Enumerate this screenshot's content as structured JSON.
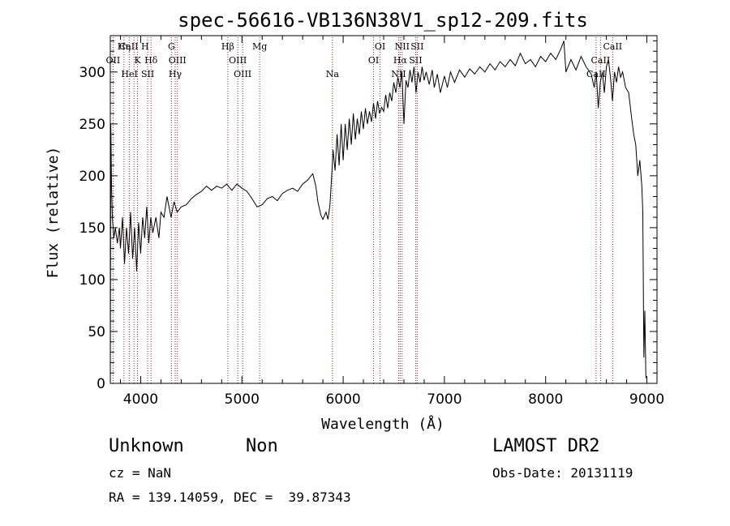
{
  "chart_data": {
    "type": "line",
    "title": "spec-56616-VB136N38V1_sp12-209.fits",
    "xlabel": "Wavelength (Å)",
    "ylabel": "Flux (relative)",
    "xlim": [
      3700,
      9100
    ],
    "ylim": [
      0,
      335
    ],
    "xticks": [
      4000,
      5000,
      6000,
      7000,
      8000,
      9000
    ],
    "yticks": [
      0,
      50,
      100,
      150,
      200,
      250,
      300
    ],
    "line_color": "#000000",
    "marker_color": "#a0202a",
    "series": [
      {
        "values_xy": [
          [
            3700,
            5
          ],
          [
            3705,
            250
          ],
          [
            3712,
            190
          ],
          [
            3720,
            160
          ],
          [
            3735,
            140
          ],
          [
            3750,
            150
          ],
          [
            3770,
            135
          ],
          [
            3790,
            150
          ],
          [
            3800,
            130
          ],
          [
            3820,
            160
          ],
          [
            3840,
            115
          ],
          [
            3860,
            150
          ],
          [
            3880,
            125
          ],
          [
            3900,
            165
          ],
          [
            3920,
            120
          ],
          [
            3940,
            150
          ],
          [
            3960,
            108
          ],
          [
            3980,
            155
          ],
          [
            4000,
            125
          ],
          [
            4020,
            160
          ],
          [
            4040,
            140
          ],
          [
            4060,
            170
          ],
          [
            4080,
            135
          ],
          [
            4100,
            160
          ],
          [
            4120,
            145
          ],
          [
            4150,
            160
          ],
          [
            4180,
            140
          ],
          [
            4200,
            165
          ],
          [
            4230,
            160
          ],
          [
            4260,
            180
          ],
          [
            4300,
            160
          ],
          [
            4330,
            175
          ],
          [
            4360,
            165
          ],
          [
            4400,
            170
          ],
          [
            4450,
            172
          ],
          [
            4500,
            178
          ],
          [
            4550,
            182
          ],
          [
            4600,
            185
          ],
          [
            4650,
            190
          ],
          [
            4700,
            186
          ],
          [
            4750,
            190
          ],
          [
            4800,
            188
          ],
          [
            4850,
            192
          ],
          [
            4900,
            186
          ],
          [
            4950,
            192
          ],
          [
            5000,
            188
          ],
          [
            5050,
            185
          ],
          [
            5100,
            178
          ],
          [
            5150,
            170
          ],
          [
            5200,
            172
          ],
          [
            5250,
            178
          ],
          [
            5300,
            180
          ],
          [
            5350,
            176
          ],
          [
            5400,
            183
          ],
          [
            5450,
            186
          ],
          [
            5500,
            188
          ],
          [
            5550,
            185
          ],
          [
            5600,
            192
          ],
          [
            5650,
            196
          ],
          [
            5700,
            202
          ],
          [
            5730,
            190
          ],
          [
            5750,
            175
          ],
          [
            5780,
            162
          ],
          [
            5800,
            158
          ],
          [
            5830,
            165
          ],
          [
            5850,
            158
          ],
          [
            5870,
            172
          ],
          [
            5890,
            205
          ],
          [
            5900,
            225
          ],
          [
            5920,
            205
          ],
          [
            5940,
            240
          ],
          [
            5960,
            210
          ],
          [
            5980,
            250
          ],
          [
            6000,
            215
          ],
          [
            6020,
            250
          ],
          [
            6040,
            225
          ],
          [
            6060,
            255
          ],
          [
            6080,
            230
          ],
          [
            6100,
            260
          ],
          [
            6120,
            235
          ],
          [
            6140,
            255
          ],
          [
            6160,
            240
          ],
          [
            6180,
            262
          ],
          [
            6200,
            245
          ],
          [
            6220,
            265
          ],
          [
            6240,
            250
          ],
          [
            6260,
            262
          ],
          [
            6280,
            252
          ],
          [
            6300,
            270
          ],
          [
            6320,
            255
          ],
          [
            6340,
            272
          ],
          [
            6360,
            260
          ],
          [
            6380,
            266
          ],
          [
            6400,
            262
          ],
          [
            6420,
            278
          ],
          [
            6440,
            265
          ],
          [
            6460,
            280
          ],
          [
            6480,
            272
          ],
          [
            6500,
            290
          ],
          [
            6520,
            280
          ],
          [
            6540,
            295
          ],
          [
            6560,
            285
          ],
          [
            6580,
            300
          ],
          [
            6600,
            250
          ],
          [
            6620,
            292
          ],
          [
            6640,
            285
          ],
          [
            6660,
            302
          ],
          [
            6680,
            290
          ],
          [
            6700,
            305
          ],
          [
            6720,
            280
          ],
          [
            6740,
            300
          ],
          [
            6760,
            290
          ],
          [
            6780,
            305
          ],
          [
            6800,
            292
          ],
          [
            6820,
            300
          ],
          [
            6850,
            288
          ],
          [
            6880,
            302
          ],
          [
            6900,
            285
          ],
          [
            6930,
            298
          ],
          [
            6960,
            280
          ],
          [
            7000,
            296
          ],
          [
            7030,
            285
          ],
          [
            7060,
            300
          ],
          [
            7100,
            290
          ],
          [
            7150,
            302
          ],
          [
            7200,
            295
          ],
          [
            7250,
            303
          ],
          [
            7300,
            298
          ],
          [
            7350,
            305
          ],
          [
            7400,
            300
          ],
          [
            7450,
            308
          ],
          [
            7500,
            302
          ],
          [
            7550,
            310
          ],
          [
            7600,
            305
          ],
          [
            7650,
            312
          ],
          [
            7700,
            306
          ],
          [
            7750,
            318
          ],
          [
            7800,
            308
          ],
          [
            7850,
            312
          ],
          [
            7900,
            305
          ],
          [
            7950,
            315
          ],
          [
            8000,
            310
          ],
          [
            8050,
            318
          ],
          [
            8100,
            312
          ],
          [
            8150,
            322
          ],
          [
            8180,
            330
          ],
          [
            8200,
            300
          ],
          [
            8250,
            312
          ],
          [
            8300,
            302
          ],
          [
            8350,
            315
          ],
          [
            8400,
            305
          ],
          [
            8450,
            298
          ],
          [
            8480,
            285
          ],
          [
            8500,
            300
          ],
          [
            8520,
            265
          ],
          [
            8540,
            290
          ],
          [
            8560,
            300
          ],
          [
            8580,
            280
          ],
          [
            8600,
            305
          ],
          [
            8620,
            312
          ],
          [
            8640,
            295
          ],
          [
            8660,
            272
          ],
          [
            8680,
            300
          ],
          [
            8700,
            290
          ],
          [
            8720,
            305
          ],
          [
            8740,
            295
          ],
          [
            8760,
            300
          ],
          [
            8790,
            285
          ],
          [
            8820,
            280
          ],
          [
            8850,
            255
          ],
          [
            8870,
            240
          ],
          [
            8890,
            230
          ],
          [
            8910,
            200
          ],
          [
            8930,
            215
          ],
          [
            8950,
            190
          ],
          [
            8960,
            165
          ],
          [
            8970,
            25
          ],
          [
            8980,
            70
          ],
          [
            8990,
            5
          ]
        ]
      }
    ],
    "line_markers": [
      {
        "label": "OII",
        "x": 3727,
        "row": 1
      },
      {
        "label": "Hη",
        "x": 3835,
        "row": 0
      },
      {
        "label": "CaII H",
        "x": 3934,
        "row": 0
      },
      {
        "label": "K",
        "x": 3969,
        "row": 1
      },
      {
        "label": "HeI",
        "x": 3889,
        "row": 2
      },
      {
        "label": "SII",
        "x": 4069,
        "row": 2
      },
      {
        "label": "Hδ",
        "x": 4102,
        "row": 1
      },
      {
        "label": "G",
        "x": 4304,
        "row": 0
      },
      {
        "label": "OIII",
        "x": 4363,
        "row": 1
      },
      {
        "label": "Hγ",
        "x": 4341,
        "row": 2
      },
      {
        "label": "Hβ",
        "x": 4861,
        "row": 0
      },
      {
        "label": "OIII",
        "x": 4959,
        "row": 1
      },
      {
        "label": "OIII",
        "x": 5007,
        "row": 2
      },
      {
        "label": "Mg",
        "x": 5175,
        "row": 0
      },
      {
        "label": "Na",
        "x": 5894,
        "row": 2
      },
      {
        "label": "OI",
        "x": 6300,
        "row": 1
      },
      {
        "label": "OI",
        "x": 6364,
        "row": 0
      },
      {
        "label": "NII",
        "x": 6548,
        "row": 2
      },
      {
        "label": "Hα",
        "x": 6563,
        "row": 1
      },
      {
        "label": "NII",
        "x": 6583,
        "row": 0
      },
      {
        "label": "SII",
        "x": 6716,
        "row": 1
      },
      {
        "label": "SII",
        "x": 6731,
        "row": 0
      },
      {
        "label": "CaII",
        "x": 8498,
        "row": 2
      },
      {
        "label": "CaII",
        "x": 8542,
        "row": 1
      },
      {
        "label": "CaII",
        "x": 8662,
        "row": 0
      }
    ]
  },
  "info": {
    "object_class": "Unknown",
    "subclass": "Non",
    "redshift": "cz = NaN",
    "coords": "RA = 139.14059, DEC =  39.87343",
    "survey": "LAMOST DR2",
    "obs_date": "Obs-Date: 20131119"
  }
}
